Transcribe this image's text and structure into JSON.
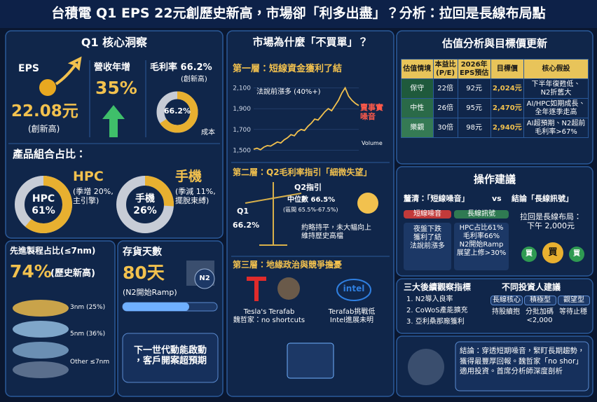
{
  "header": {
    "title": "台積電 Q1 EPS 22元創歷史新高，市場卻「利多出盡」？分析：拉回是長線布局點"
  },
  "insight": {
    "title": "Q1 核心洞察",
    "eps_label": "EPS",
    "eps_value": "22.08元",
    "eps_note": "(創新高)",
    "revenue_label": "營收年增",
    "revenue_value": "35%",
    "margin_label": "毛利率 66.2%",
    "margin_note": "(創新高)",
    "margin_donut": {
      "value": 66.2,
      "label": "66.2%",
      "rest_label": "成本"
    }
  },
  "mix": {
    "title": "產品組合占比：",
    "items": [
      {
        "name": "HPC",
        "note": "(季增 20%,\n主引擎)",
        "center": "HPC",
        "value": 61,
        "label": "61%"
      },
      {
        "name": "手機",
        "note": "(季減 11%,\n擺脫束縛)",
        "center": "手機",
        "value": 26,
        "label": "26%"
      }
    ]
  },
  "process": {
    "title": "先進製程占比(≤7nm)",
    "value": "74%",
    "note": "(歷史新高)",
    "layers": [
      "3nm (25%)",
      "5nm (36%)",
      "Other ≤7nm"
    ]
  },
  "inventory": {
    "title": "存貨天數",
    "value": "80天",
    "note": "(N2開始Ramp)",
    "badge": "N2",
    "callout": "下一世代動能啟動\n，客戶開案超預期"
  },
  "market": {
    "title": "市場為什麼「不買單」？",
    "layer1": {
      "title": "第一層：短線資金獲利了結",
      "chart": {
        "type": "line",
        "annotation": "法說前漲多 (40%+)",
        "callout": "賣事實\n噪音",
        "volume_label": "Volume",
        "color": "#f2c14e",
        "values": [
          1510,
          1520,
          1505,
          1530,
          1545,
          1540,
          1560,
          1580,
          1570,
          1600,
          1620,
          1650,
          1640,
          1680,
          1700,
          1690,
          1730,
          1760,
          1800,
          1790,
          1830,
          1870,
          1900,
          1880,
          1930,
          1980,
          2050,
          2100,
          2020,
          1980,
          1950,
          1930
        ],
        "ylim": [
          1450,
          2150
        ],
        "yticks": [
          {
            "value": 2100,
            "label": "2,100"
          },
          {
            "value": 1900,
            "label": "1,900"
          },
          {
            "value": 1700,
            "label": "1,700"
          },
          {
            "value": 1500,
            "label": "1,500"
          }
        ]
      }
    },
    "layer2": {
      "title": "第二層：Q2毛利率指引「細微失望」",
      "q1_label": "Q1",
      "q1_value": "66.2%",
      "q2_label": "Q2指引",
      "q2_median": "中位數 66.5%",
      "q2_range": "(區間 65.5%-67.5%)",
      "note": "約略持平，未大幅向上\n維持歷史高檔"
    },
    "layer3": {
      "title": "第三層：地緣政治與競爭擔憂",
      "left": "Tesla's Terafab\n魏哲家：no shortcuts",
      "right": "Terafab挑戰低\nIntel進展未明",
      "logo": "intel"
    }
  },
  "valuation": {
    "title": "估值分析與目標價更新",
    "columns": [
      "估值情境",
      "本益比\n(P/E)",
      "2026年\nEPS預估",
      "目標價",
      "核心假設"
    ],
    "rows": [
      [
        "保守",
        "22倍",
        "92元",
        "2,024元",
        "下半年復甦低、\nN2折舊大"
      ],
      [
        "中性",
        "26倍",
        "95元",
        "2,470元",
        "AI/HPC如期成長、\n全年逐季走高"
      ],
      [
        "樂觀",
        "30倍",
        "98元",
        "2,940元",
        "AI超預期、N2超前\n毛利率>67%"
      ]
    ]
  },
  "advice": {
    "title": "操作建議",
    "clarify": "釐清：「短線噪音」",
    "vs": "vs",
    "conclusion": "結論「長線訊號」",
    "noise_head": "短線噪音",
    "noise_body": "夜盤下跌\n獲利了結\n法說前漲多",
    "signal_head": "長線訊號",
    "signal_body": "HPC占比61%\n毛利率66%\nN2開始Ramp\n展望上修>30%",
    "entry": "拉回是長線布局：\n下午 2,000元",
    "buttons": [
      "買",
      "買",
      "買"
    ]
  },
  "watch": {
    "title": "三大後續觀察指標",
    "items": [
      "1. N2導入良率",
      "2. CoWoS產能擴充",
      "3. 亞利桑那廠獲利"
    ],
    "investor_title": "不同投資人建議",
    "investors": [
      {
        "type": "長線核心",
        "advice": "持股續抱"
      },
      {
        "type": "積極型",
        "advice": "分批加碼\n<2,000"
      },
      {
        "type": "觀望型",
        "advice": "等待止穩"
      }
    ]
  },
  "conclusion": {
    "text": "結論：穿透短期噪音，緊盯長期趨勢，獲得最豐厚回報。魏哲家「no shor」適用投資。首席分析師深度剖析"
  }
}
